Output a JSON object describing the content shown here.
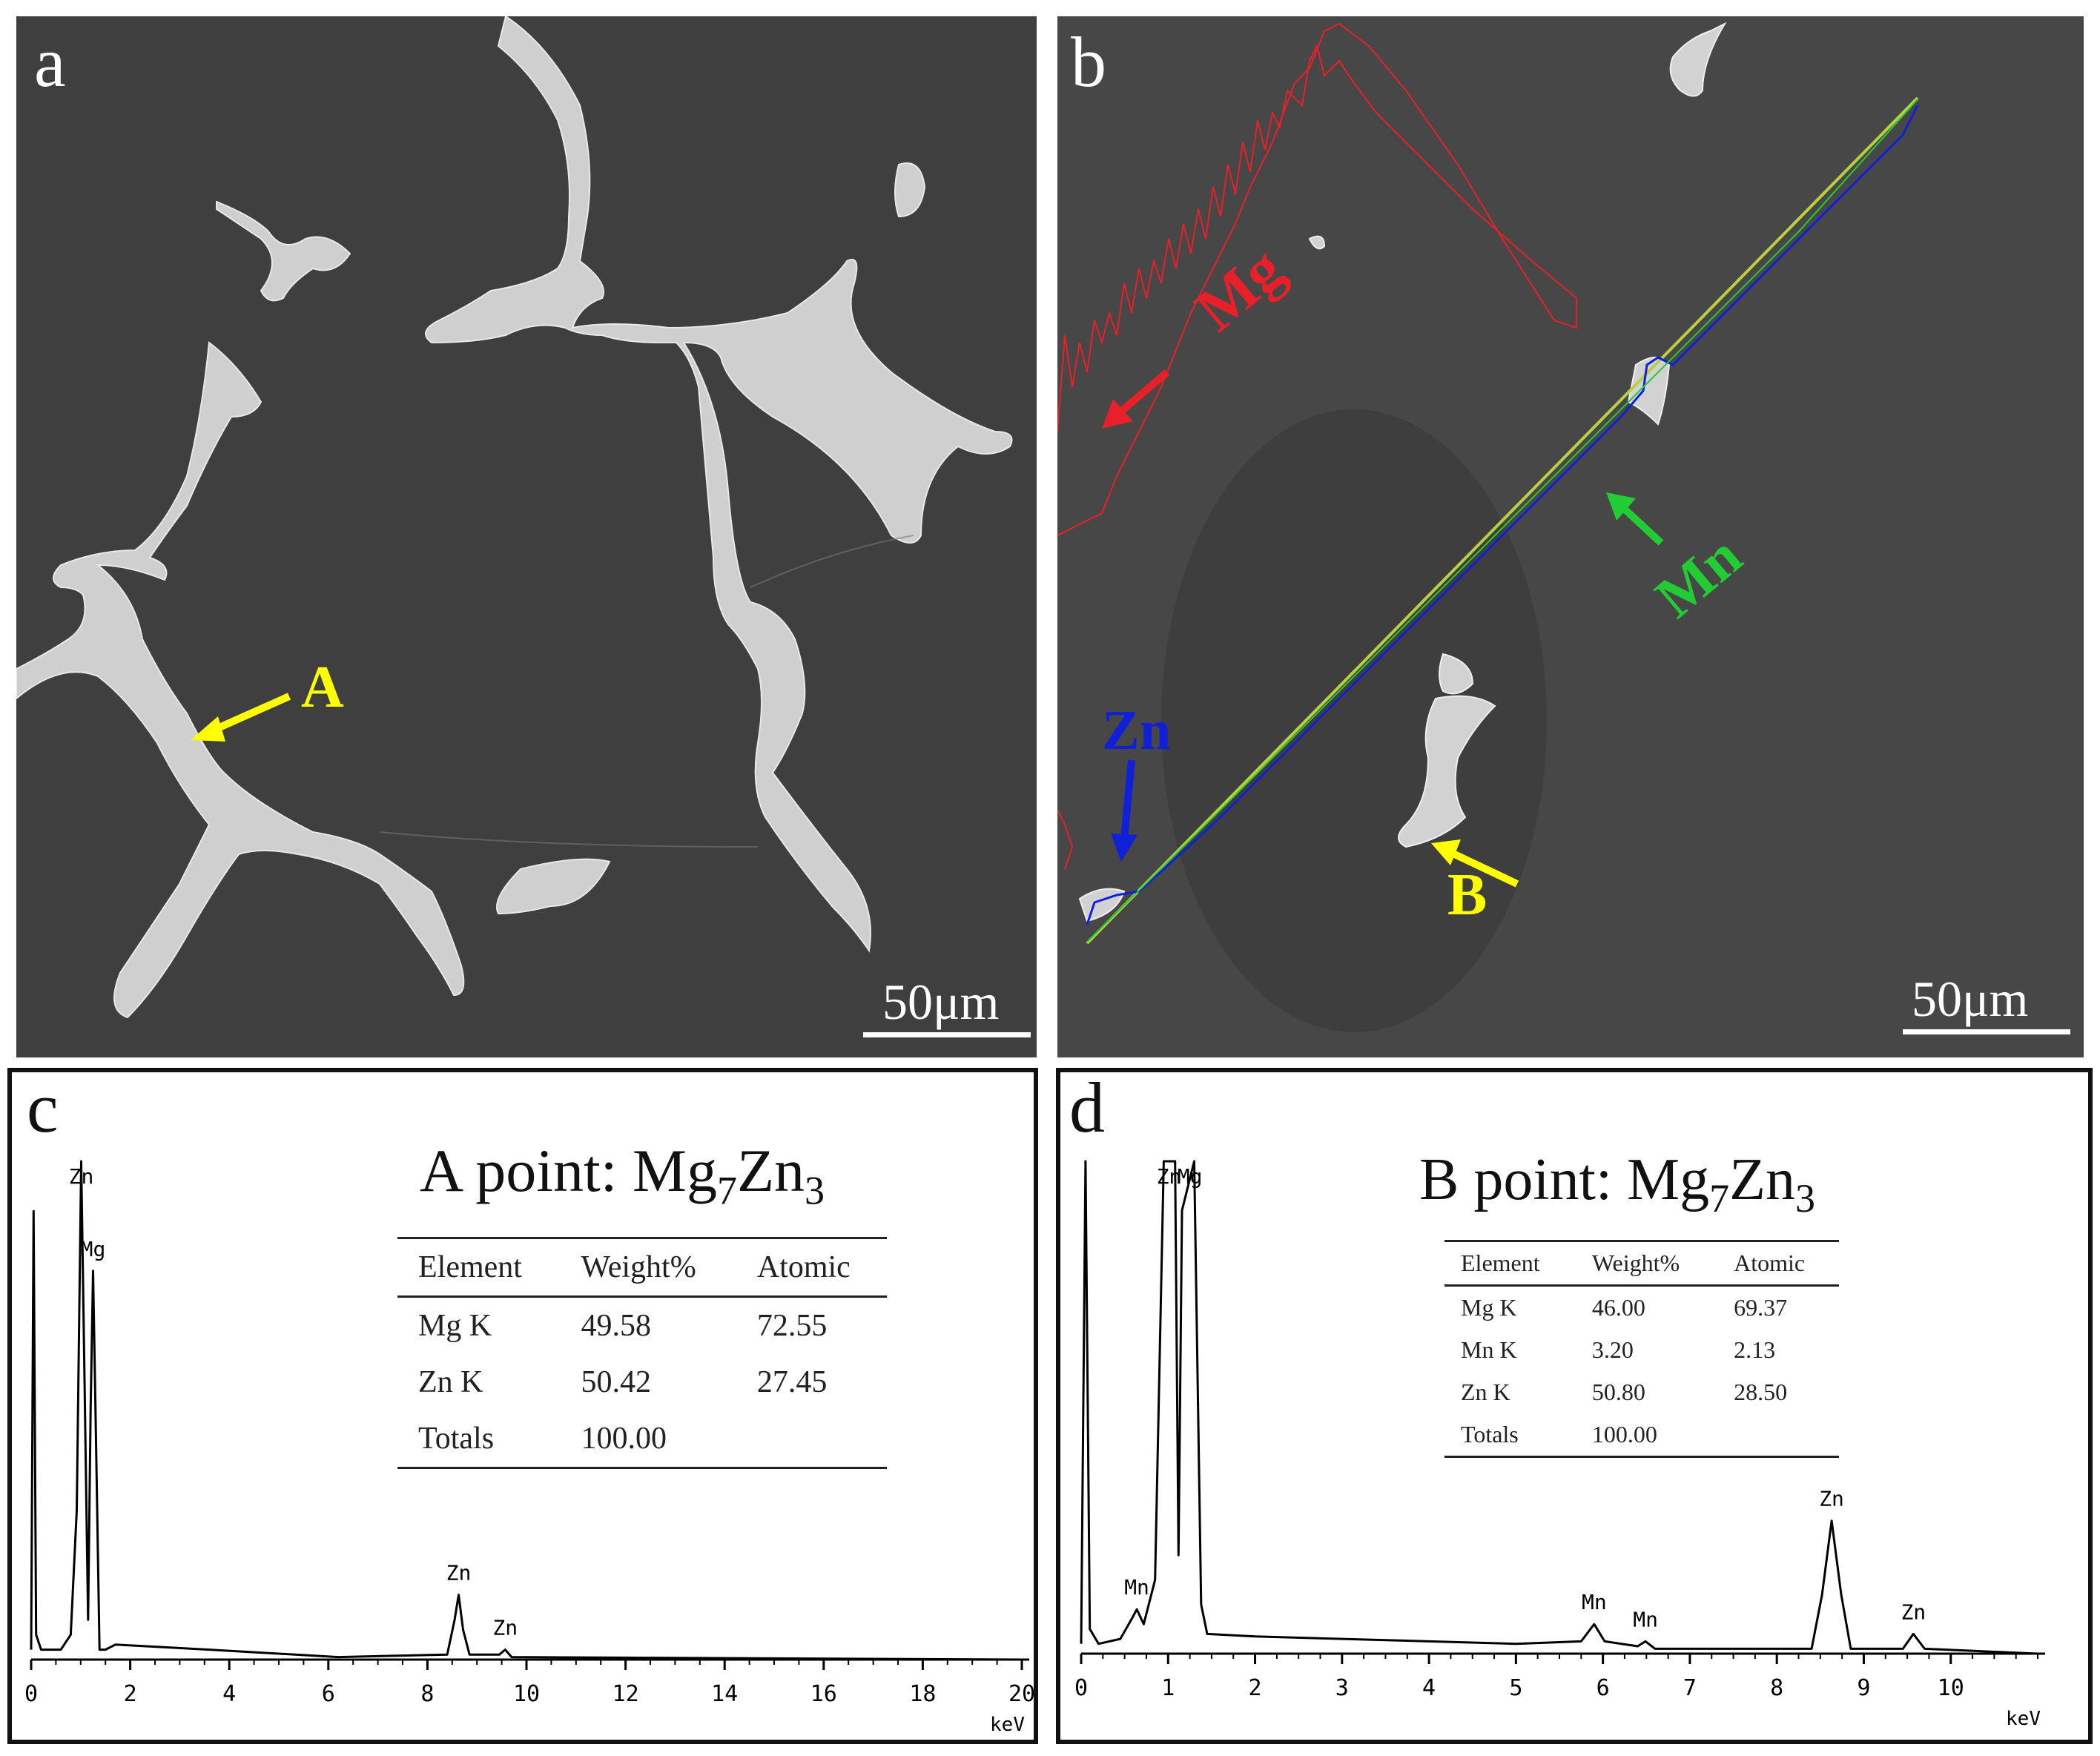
{
  "figure": {
    "panel_a": {
      "letter": "a",
      "scale_bar": "50μm",
      "point_label": "A",
      "colors": {
        "matrix": "#3f3f3f",
        "phase": "#cfcfcf",
        "annotation": "#ffff00"
      }
    },
    "panel_b": {
      "letter": "b",
      "scale_bar": "50μm",
      "point_label": "B",
      "line_scan_labels": {
        "mg": "Mg",
        "mn": "Mn",
        "zn": "Zn"
      },
      "colors": {
        "mg": "#e8202a",
        "mn": "#22cc33",
        "zn": "#1020d8",
        "point": "#ffff00",
        "scan_line": "#b8d040"
      }
    },
    "panel_c": {
      "letter": "c",
      "title": {
        "prefix": "A point: Mg",
        "sub1": "7",
        "mid": "Zn",
        "sub2": "3"
      },
      "table": {
        "headers": [
          "Element",
          "Weight%",
          "Atomic"
        ],
        "rows": [
          [
            "Mg K",
            "49.58",
            "72.55"
          ],
          [
            "Zn K",
            "50.42",
            "27.45"
          ],
          [
            "Totals",
            "100.00",
            ""
          ]
        ]
      }
    },
    "panel_d": {
      "letter": "d",
      "title": {
        "prefix": "B point: Mg",
        "sub1": "7",
        "mid": "Zn",
        "sub2": "3"
      },
      "table": {
        "headers": [
          "Element",
          "Weight%",
          "Atomic"
        ],
        "rows": [
          [
            "Mg K",
            "46.00",
            "69.37"
          ],
          [
            "Mn K",
            "3.20",
            "2.13"
          ],
          [
            "Zn K",
            "50.80",
            "28.50"
          ],
          [
            "Totals",
            "100.00",
            ""
          ]
        ]
      }
    }
  },
  "chart_data": [
    {
      "type": "line",
      "panel": "c",
      "xlabel": "keV",
      "xlim": [
        0,
        20
      ],
      "xticks": [
        "0",
        "2",
        "4",
        "6",
        "8",
        "10",
        "12",
        "14",
        "16",
        "18",
        "20"
      ],
      "peak_labels": [
        {
          "text": "Mg",
          "x": 1.25
        },
        {
          "text": "Zn",
          "x": 1.01
        },
        {
          "text": "Zn",
          "x": 8.63
        },
        {
          "text": "Zn",
          "x": 9.57
        }
      ],
      "series": [
        {
          "color": "#000000",
          "points": [
            [
              0,
              0.02
            ],
            [
              0.05,
              0.9
            ],
            [
              0.1,
              0.05
            ],
            [
              0.2,
              0.02
            ],
            [
              0.6,
              0.02
            ],
            [
              0.8,
              0.05
            ],
            [
              0.92,
              0.3
            ],
            [
              1.01,
              1.0
            ],
            [
              1.08,
              0.55
            ],
            [
              1.15,
              0.08
            ],
            [
              1.2,
              0.5
            ],
            [
              1.25,
              0.78
            ],
            [
              1.3,
              0.5
            ],
            [
              1.38,
              0.02
            ],
            [
              1.5,
              0.02
            ],
            [
              1.7,
              0.03
            ],
            [
              3.6,
              0.02
            ],
            [
              6.2,
              0.005
            ],
            [
              8.4,
              0.01
            ],
            [
              8.55,
              0.08
            ],
            [
              8.63,
              0.13
            ],
            [
              8.72,
              0.06
            ],
            [
              8.85,
              0.01
            ],
            [
              9.45,
              0.01
            ],
            [
              9.57,
              0.02
            ],
            [
              9.7,
              0.005
            ],
            [
              20,
              0.0
            ]
          ]
        }
      ]
    },
    {
      "type": "line",
      "panel": "d",
      "xlabel": "keV",
      "xlim": [
        0,
        11
      ],
      "xticks": [
        "0",
        "1",
        "2",
        "3",
        "4",
        "5",
        "6",
        "7",
        "8",
        "9",
        "10"
      ],
      "peak_labels": [
        {
          "text": "Mn",
          "x": 0.64
        },
        {
          "text": "Zn",
          "x": 1.01
        },
        {
          "text": "Mg",
          "x": 1.25
        },
        {
          "text": "Mn",
          "x": 5.9
        },
        {
          "text": "Mn",
          "x": 6.49
        },
        {
          "text": "Zn",
          "x": 8.63
        },
        {
          "text": "Zn",
          "x": 9.57
        }
      ],
      "series": [
        {
          "color": "#000000",
          "points": [
            [
              0,
              0.02
            ],
            [
              0.05,
              1.0
            ],
            [
              0.1,
              0.05
            ],
            [
              0.2,
              0.02
            ],
            [
              0.45,
              0.03
            ],
            [
              0.58,
              0.07
            ],
            [
              0.64,
              0.09
            ],
            [
              0.72,
              0.06
            ],
            [
              0.85,
              0.15
            ],
            [
              0.95,
              1.0
            ],
            [
              1.08,
              1.0
            ],
            [
              1.12,
              0.2
            ],
            [
              1.16,
              0.9
            ],
            [
              1.3,
              1.0
            ],
            [
              1.38,
              0.1
            ],
            [
              1.45,
              0.04
            ],
            [
              2.0,
              0.035
            ],
            [
              3.0,
              0.03
            ],
            [
              4.0,
              0.025
            ],
            [
              5.0,
              0.02
            ],
            [
              5.75,
              0.025
            ],
            [
              5.9,
              0.06
            ],
            [
              6.02,
              0.025
            ],
            [
              6.4,
              0.015
            ],
            [
              6.49,
              0.025
            ],
            [
              6.6,
              0.01
            ],
            [
              8.4,
              0.01
            ],
            [
              8.52,
              0.12
            ],
            [
              8.63,
              0.27
            ],
            [
              8.74,
              0.12
            ],
            [
              8.85,
              0.01
            ],
            [
              9.45,
              0.01
            ],
            [
              9.57,
              0.04
            ],
            [
              9.7,
              0.01
            ],
            [
              11,
              0.0
            ]
          ]
        }
      ]
    }
  ]
}
